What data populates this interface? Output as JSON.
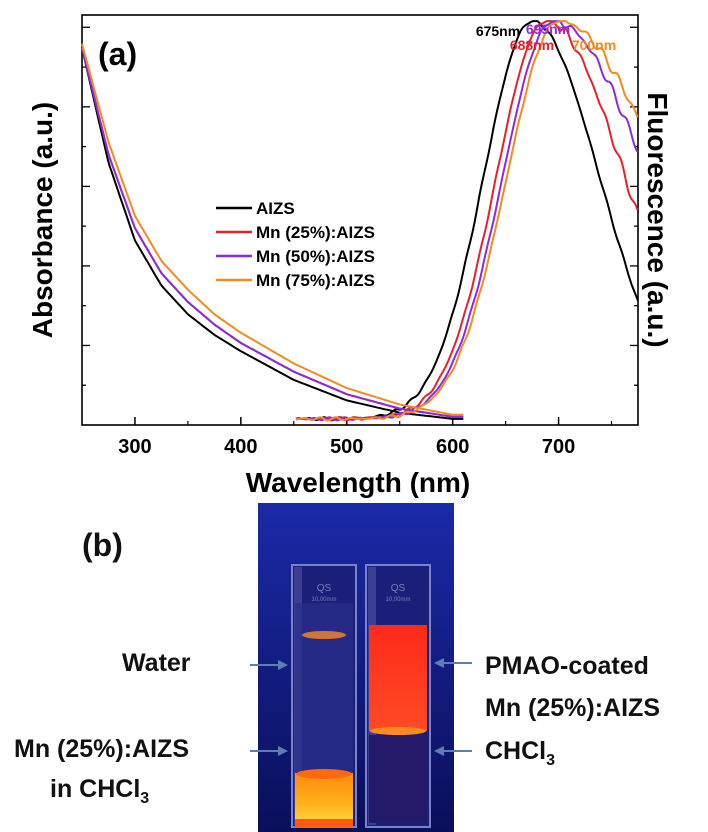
{
  "panel_a_label": "(a)",
  "panel_b_label": "(b)",
  "chart_data": {
    "type": "line",
    "title": "",
    "xlabel": "Wavelength (nm)",
    "ylabel_left": "Absorbance (a.u.)",
    "ylabel_right": "Fluorescence (a.u.)",
    "xlim": [
      250,
      775
    ],
    "ylim": [
      0,
      1
    ],
    "x_ticks": [
      300,
      400,
      500,
      600,
      700
    ],
    "legend": {
      "placement": "center-left"
    },
    "peak_labels": [
      {
        "text": "675nm",
        "color": "#000000"
      },
      {
        "text": "695nm",
        "color": "#8a2be2"
      },
      {
        "text": "688nm",
        "color": "#e8202a"
      },
      {
        "text": "700nm",
        "color": "#f28c1e"
      }
    ],
    "series": [
      {
        "name": "AIZS",
        "color": "#000000",
        "absorbance": {
          "x": [
            250,
            275,
            300,
            325,
            350,
            375,
            400,
            450,
            500,
            550,
            600
          ],
          "y": [
            0.92,
            0.64,
            0.45,
            0.34,
            0.27,
            0.22,
            0.18,
            0.11,
            0.06,
            0.03,
            0.015
          ]
        },
        "fluorescence": {
          "peak": 675,
          "width_left": 46,
          "width_right": 64,
          "base": 0.07
        }
      },
      {
        "name": "Mn (25%):AIZS",
        "color": "#e8202a",
        "absorbance": {
          "x": [
            250,
            275,
            300,
            325,
            350,
            375,
            400,
            450,
            500,
            550,
            600
          ],
          "y": [
            0.92,
            0.66,
            0.48,
            0.37,
            0.3,
            0.245,
            0.2,
            0.13,
            0.075,
            0.04,
            0.02
          ]
        },
        "fluorescence": {
          "peak": 688,
          "width_left": 47,
          "width_right": 75,
          "base": 0.05
        }
      },
      {
        "name": "Mn (50%):AIZS",
        "color": "#8a2be2",
        "absorbance": {
          "x": [
            250,
            275,
            300,
            325,
            350,
            375,
            400,
            450,
            500,
            550,
            600
          ],
          "y": [
            0.92,
            0.66,
            0.48,
            0.37,
            0.3,
            0.245,
            0.2,
            0.13,
            0.075,
            0.04,
            0.02
          ]
        },
        "fluorescence": {
          "peak": 695,
          "width_left": 48,
          "width_right": 90,
          "base": 0.05
        }
      },
      {
        "name": "Mn (75%):AIZS",
        "color": "#f28c1e",
        "absorbance": {
          "x": [
            250,
            275,
            300,
            325,
            350,
            375,
            400,
            450,
            500,
            550,
            600
          ],
          "y": [
            0.93,
            0.69,
            0.51,
            0.4,
            0.33,
            0.27,
            0.225,
            0.15,
            0.09,
            0.05,
            0.025
          ]
        },
        "fluorescence": {
          "peak": 700,
          "width_left": 49,
          "width_right": 100,
          "base": 0.05
        }
      }
    ]
  },
  "photo": {
    "left_tube_top_label": "QS",
    "left_tube_bottom_label": "10,00mm",
    "right_tube_top_label": "QS",
    "right_tube_bottom_label": "10,00mm"
  },
  "labels": {
    "water": "Water",
    "mn_in_chcl3_line1": "Mn (25%):AIZS",
    "mn_in_chcl3_line2": "in CHCl",
    "mn_in_chcl3_sub": "3",
    "pmao_line1": "PMAO-coated",
    "pmao_line2": "Mn (25%):AIZS",
    "chcl3": "CHCl",
    "chcl3_sub": "3"
  }
}
